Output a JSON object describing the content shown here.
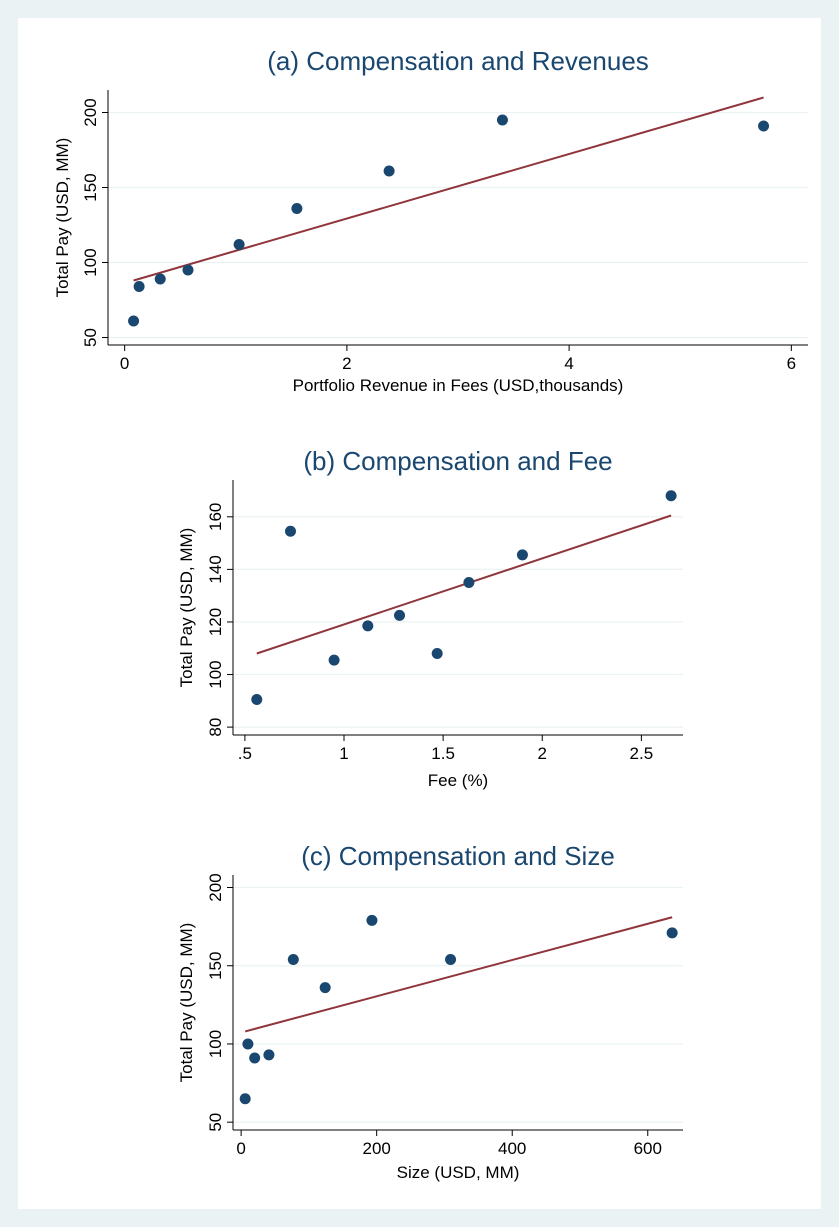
{
  "chart_data": [
    {
      "type": "scatter",
      "title": "(a) Compensation and Revenues",
      "xlabel": "Portfolio Revenue in Fees (USD,thousands)",
      "ylabel": "Total Pay (USD, MM)",
      "xlim": [
        -0.15,
        6.15
      ],
      "ylim": [
        45,
        215
      ],
      "xticks": [
        0,
        2,
        4,
        6
      ],
      "xtick_labels": [
        "0",
        "2",
        "4",
        "6"
      ],
      "yticks": [
        50,
        100,
        150,
        200
      ],
      "ytick_labels": [
        "50",
        "100",
        "150",
        "200"
      ],
      "grid": true,
      "points": [
        {
          "x": 0.08,
          "y": 61
        },
        {
          "x": 0.13,
          "y": 84
        },
        {
          "x": 0.32,
          "y": 89
        },
        {
          "x": 0.57,
          "y": 95
        },
        {
          "x": 1.03,
          "y": 112
        },
        {
          "x": 1.55,
          "y": 136
        },
        {
          "x": 2.38,
          "y": 161
        },
        {
          "x": 3.4,
          "y": 195
        },
        {
          "x": 5.75,
          "y": 191
        }
      ],
      "fit_line": [
        {
          "x": 0.08,
          "y": 88
        },
        {
          "x": 5.75,
          "y": 210
        }
      ],
      "colors": {
        "points": "#1a476f",
        "fit": "#90353b"
      }
    },
    {
      "type": "scatter",
      "title": "(b) Compensation and Fee",
      "xlabel": "Fee (%)",
      "ylabel": "Total Pay (USD, MM)",
      "xlim": [
        0.44,
        2.71
      ],
      "ylim": [
        77,
        174
      ],
      "xticks": [
        0.5,
        1,
        1.5,
        2,
        2.5
      ],
      "xtick_labels": [
        ".5",
        "1",
        "1.5",
        "2",
        "2.5"
      ],
      "yticks": [
        80,
        100,
        120,
        140,
        160
      ],
      "ytick_labels": [
        "80",
        "100",
        "120",
        "140",
        "160"
      ],
      "grid": true,
      "points": [
        {
          "x": 0.56,
          "y": 90.5
        },
        {
          "x": 0.73,
          "y": 154.5
        },
        {
          "x": 0.95,
          "y": 105.5
        },
        {
          "x": 1.12,
          "y": 118.5
        },
        {
          "x": 1.28,
          "y": 122.5
        },
        {
          "x": 1.47,
          "y": 108
        },
        {
          "x": 1.63,
          "y": 135
        },
        {
          "x": 1.9,
          "y": 145.5
        },
        {
          "x": 2.65,
          "y": 168
        }
      ],
      "fit_line": [
        {
          "x": 0.56,
          "y": 108
        },
        {
          "x": 2.65,
          "y": 160.5
        }
      ],
      "colors": {
        "points": "#1a476f",
        "fit": "#90353b"
      }
    },
    {
      "type": "scatter",
      "title": "(c) Compensation and Size",
      "xlabel": "Size (USD, MM)",
      "ylabel": "Total Pay (USD, MM)",
      "xlim": [
        -12,
        652
      ],
      "ylim": [
        45,
        208
      ],
      "xticks": [
        0,
        200,
        400,
        600
      ],
      "xtick_labels": [
        "0",
        "200",
        "400",
        "600"
      ],
      "yticks": [
        50,
        100,
        150,
        200
      ],
      "ytick_labels": [
        "50",
        "100",
        "150",
        "200"
      ],
      "grid": true,
      "points": [
        {
          "x": 6,
          "y": 65
        },
        {
          "x": 10,
          "y": 100
        },
        {
          "x": 20,
          "y": 91
        },
        {
          "x": 41,
          "y": 93
        },
        {
          "x": 77,
          "y": 154
        },
        {
          "x": 124,
          "y": 136
        },
        {
          "x": 193,
          "y": 179
        },
        {
          "x": 309,
          "y": 154
        },
        {
          "x": 636,
          "y": 171
        }
      ],
      "fit_line": [
        {
          "x": 6,
          "y": 108
        },
        {
          "x": 636,
          "y": 181
        }
      ],
      "colors": {
        "points": "#1a476f",
        "fit": "#90353b"
      }
    }
  ]
}
